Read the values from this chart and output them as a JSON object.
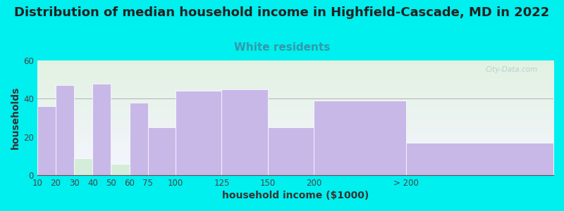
{
  "title": "Distribution of median household income in Highfield-Cascade, MD in 2022",
  "subtitle": "White residents",
  "xlabel": "household income ($1000)",
  "ylabel": "households",
  "background_color": "#00EFEF",
  "plot_bg_top_color": "#e2f2e2",
  "plot_bg_bottom_color": "#f5f5ff",
  "bar_color": "#c8b8e8",
  "green_bar_color": "#d4edda",
  "bar_edge_color": "#ffffff",
  "subtitle_color": "#3399aa",
  "title_color": "#222222",
  "tick_color": "#444444",
  "axis_label_color": "#333333",
  "watermark_color": "#aacccc",
  "categories": [
    "10",
    "20",
    "30",
    "40",
    "50",
    "60",
    "75",
    "100",
    "125",
    "150",
    "200",
    "> 200"
  ],
  "values": [
    36,
    47,
    9,
    48,
    6,
    38,
    25,
    44,
    45,
    25,
    39,
    17
  ],
  "green_bar_indices": [
    2,
    4
  ],
  "left_edges": [
    0,
    10,
    20,
    30,
    40,
    50,
    60,
    75,
    100,
    125,
    150,
    200
  ],
  "widths": [
    10,
    10,
    10,
    10,
    10,
    10,
    15,
    25,
    25,
    25,
    50,
    80
  ],
  "ylim": [
    0,
    60
  ],
  "yticks": [
    0,
    20,
    40,
    60
  ],
  "title_fontsize": 13,
  "subtitle_fontsize": 11,
  "axis_label_fontsize": 10,
  "tick_fontsize": 8.5,
  "watermark": "City-Data.com"
}
